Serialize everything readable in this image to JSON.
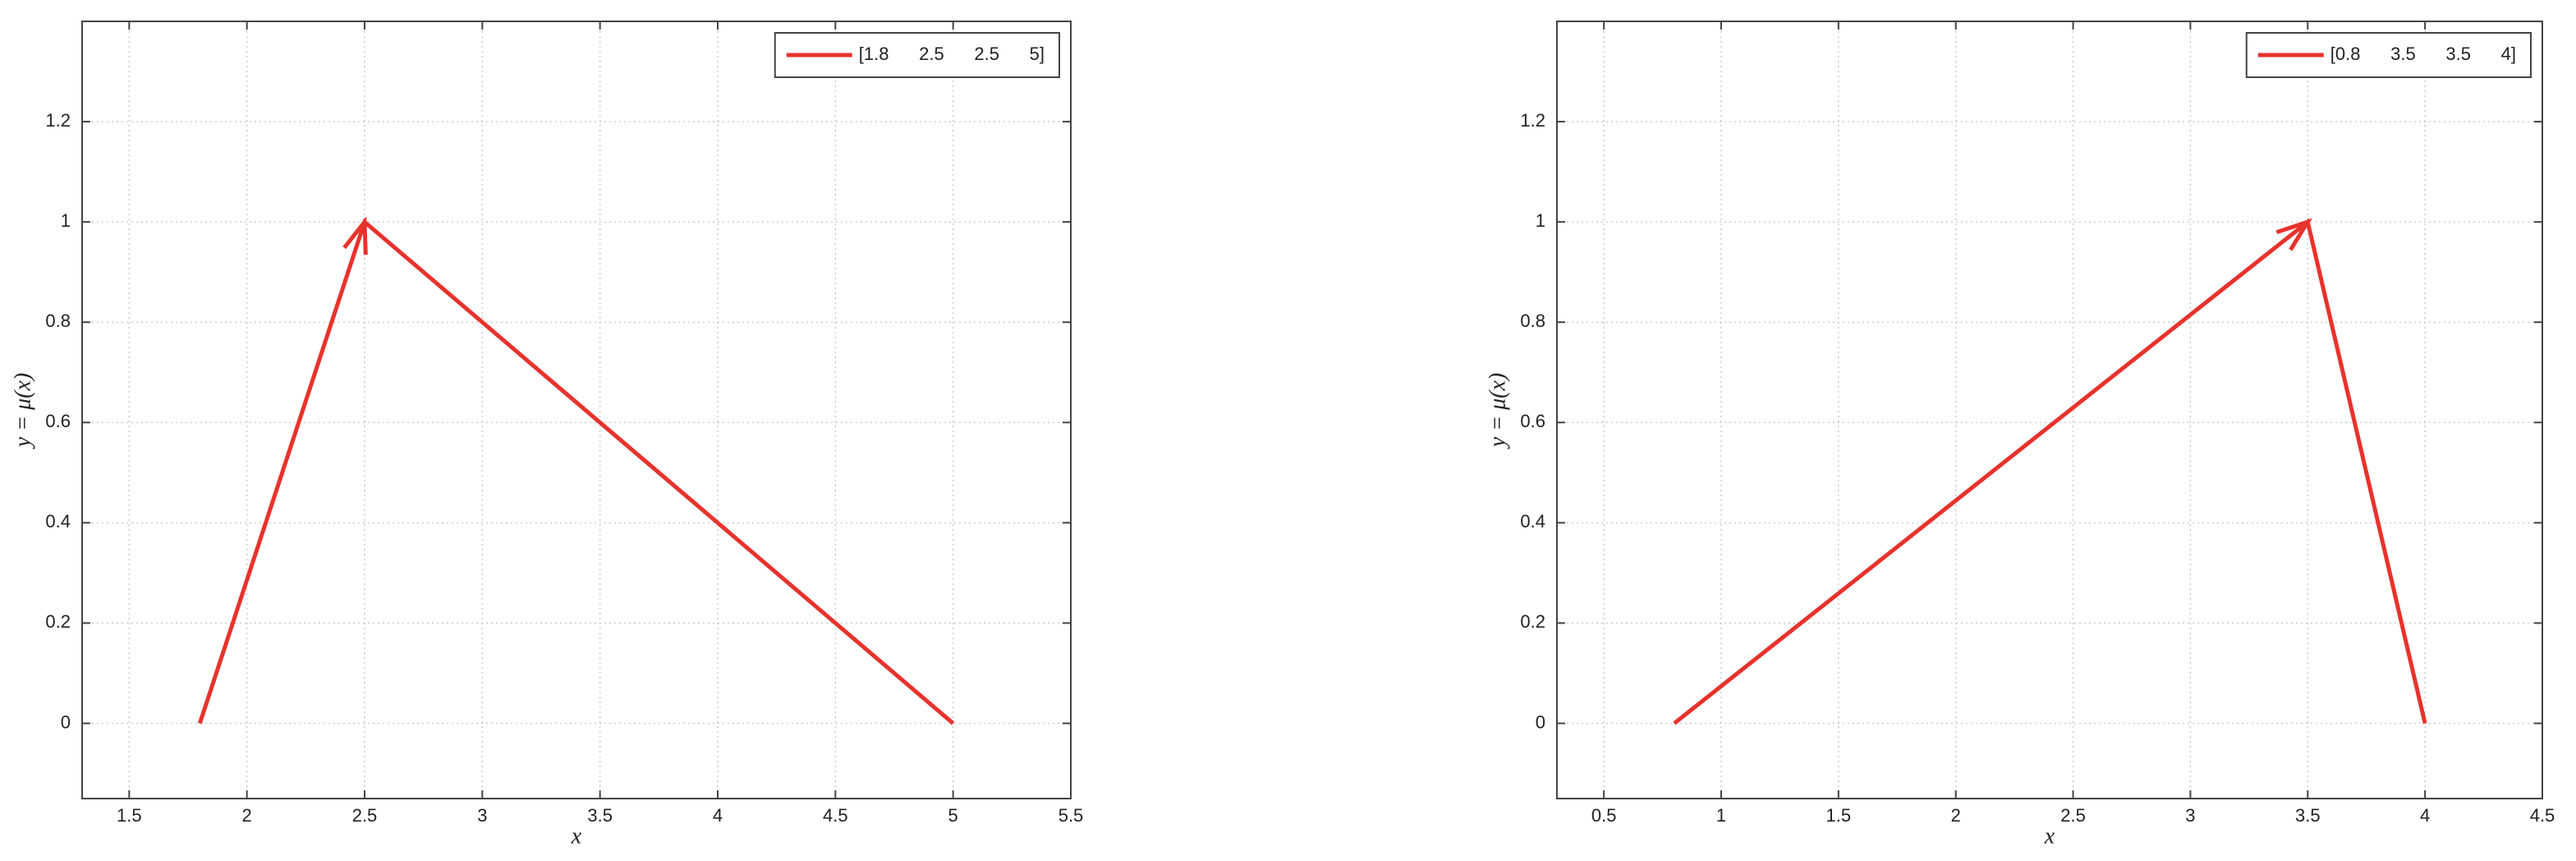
{
  "chart_data": [
    {
      "type": "line",
      "xlabel": "x",
      "ylabel": "y = μ(x)",
      "x": [
        1.8,
        2.5,
        5
      ],
      "series": [
        {
          "name": "[1.8      2.5      2.5      5]",
          "color": "#e8322c",
          "values": [
            0,
            1,
            0
          ]
        }
      ],
      "xlim": [
        1.3,
        5.5
      ],
      "ylim": [
        -0.15,
        1.4
      ],
      "xticks": [
        1.5,
        2,
        2.5,
        3,
        3.5,
        4,
        4.5,
        5,
        5.5
      ],
      "yticks": [
        0,
        0.2,
        0.4,
        0.6,
        0.8,
        1,
        1.2
      ],
      "grid": true,
      "legend": "upper-right"
    },
    {
      "type": "line",
      "xlabel": "x",
      "ylabel": "y = μ(x)",
      "x": [
        0.8,
        3.5,
        4
      ],
      "series": [
        {
          "name": "[0.8      3.5      3.5      4]",
          "color": "#e8322c",
          "values": [
            0,
            1,
            0
          ]
        }
      ],
      "xlim": [
        0.3,
        4.5
      ],
      "ylim": [
        -0.15,
        1.4
      ],
      "xticks": [
        0.5,
        1,
        1.5,
        2,
        2.5,
        3,
        3.5,
        4,
        4.5
      ],
      "yticks": [
        0,
        0.2,
        0.4,
        0.6,
        0.8,
        1,
        1.2
      ],
      "grid": true,
      "legend": "upper-right"
    }
  ]
}
